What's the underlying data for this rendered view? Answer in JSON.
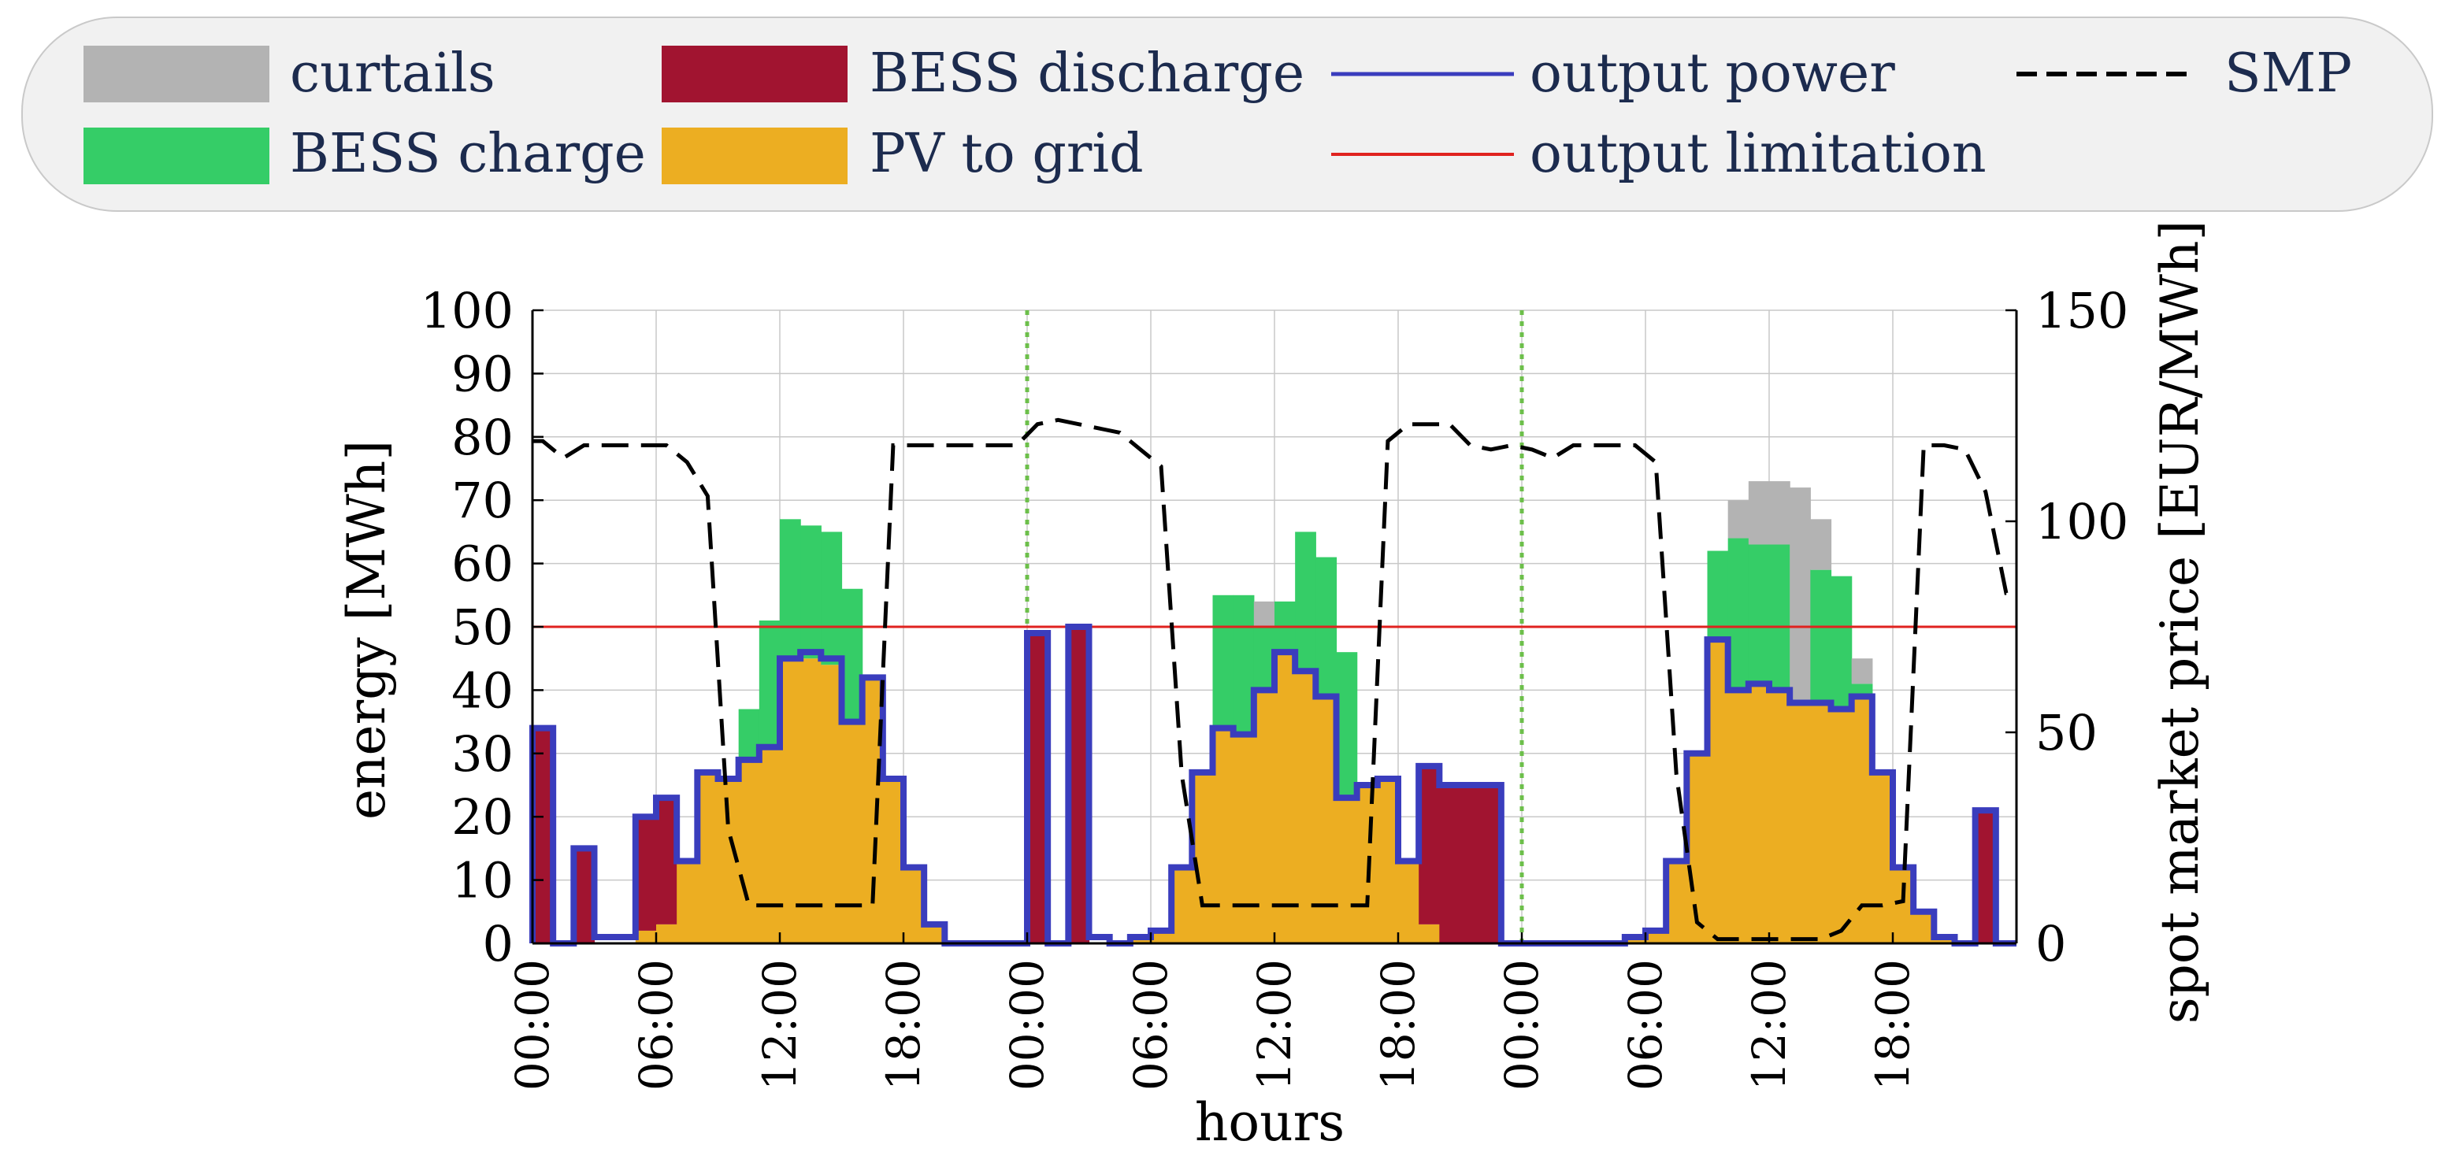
{
  "chart_data": {
    "type": "bar",
    "xlabel": "hours",
    "ylabel": "energy [MWh]",
    "y2label": "spot market price [EUR/MWh]",
    "ylim": [
      0,
      100
    ],
    "y2lim": [
      0,
      150
    ],
    "yticks": [
      0,
      10,
      20,
      30,
      40,
      50,
      60,
      70,
      80,
      90,
      100
    ],
    "y2ticks": [
      0,
      50,
      100,
      150
    ],
    "xticks": [
      {
        "h": 0,
        "label": "00:00"
      },
      {
        "h": 6,
        "label": "06:00"
      },
      {
        "h": 12,
        "label": "12:00"
      },
      {
        "h": 18,
        "label": "18:00"
      },
      {
        "h": 24,
        "label": "00:00"
      },
      {
        "h": 30,
        "label": "06:00"
      },
      {
        "h": 36,
        "label": "12:00"
      },
      {
        "h": 42,
        "label": "18:00"
      },
      {
        "h": 48,
        "label": "00:00"
      },
      {
        "h": 54,
        "label": "06:00"
      },
      {
        "h": 60,
        "label": "12:00"
      },
      {
        "h": 66,
        "label": "18:00"
      }
    ],
    "day_boundaries": [
      24,
      48
    ],
    "output_limitation": 50,
    "hours": 72,
    "series": [
      {
        "name": "PV to grid",
        "color": "#ecae22",
        "values": [
          0,
          0,
          0,
          0,
          0,
          2,
          3,
          13,
          27,
          26,
          29,
          31,
          45,
          45,
          44,
          35,
          42,
          26,
          12,
          3,
          0,
          0,
          0,
          0,
          0,
          0,
          0,
          0,
          0,
          1,
          2,
          12,
          27,
          34,
          33,
          40,
          46,
          43,
          39,
          23,
          25,
          26,
          13,
          3,
          0,
          0,
          0,
          0,
          0,
          0,
          0,
          0,
          0,
          1,
          2,
          13,
          30,
          48,
          40,
          41,
          40,
          38,
          38,
          37,
          39,
          27,
          12,
          5,
          1,
          0,
          0,
          0
        ]
      },
      {
        "name": "BESS charge",
        "color": "#35cd67",
        "values": [
          0,
          0,
          0,
          0,
          0,
          0,
          0,
          0,
          0,
          0,
          8,
          20,
          22,
          21,
          21,
          21,
          0,
          0,
          0,
          0,
          0,
          0,
          0,
          0,
          0,
          0,
          0,
          0,
          0,
          0,
          0,
          0,
          0,
          21,
          22,
          10,
          8,
          22,
          22,
          23,
          0,
          0,
          0,
          0,
          0,
          0,
          0,
          0,
          0,
          0,
          0,
          0,
          0,
          0,
          0,
          0,
          0,
          14,
          24,
          22,
          23,
          0,
          21,
          21,
          2,
          0,
          0,
          0,
          0,
          0,
          0,
          0
        ]
      },
      {
        "name": "curtails",
        "color": "#b3b3b3",
        "values": [
          0,
          0,
          0,
          0,
          0,
          0,
          0,
          0,
          0,
          0,
          0,
          0,
          0,
          0,
          0,
          0,
          0,
          0,
          0,
          0,
          0,
          0,
          0,
          0,
          0,
          0,
          0,
          0,
          0,
          0,
          0,
          0,
          0,
          0,
          0,
          4,
          0,
          0,
          0,
          0,
          0,
          0,
          0,
          0,
          0,
          0,
          0,
          0,
          0,
          0,
          0,
          0,
          0,
          0,
          0,
          0,
          0,
          0,
          6,
          10,
          10,
          34,
          8,
          0,
          4,
          0,
          0,
          0,
          0,
          0,
          0,
          0
        ]
      },
      {
        "name": "BESS discharge",
        "color": "#a11430",
        "values": [
          34,
          0,
          15,
          0,
          0,
          18,
          20,
          0,
          0,
          0,
          0,
          0,
          0,
          0,
          0,
          0,
          0,
          0,
          0,
          0,
          0,
          0,
          0,
          0,
          49,
          0,
          50,
          0,
          0,
          0,
          0,
          0,
          0,
          0,
          0,
          0,
          0,
          0,
          0,
          0,
          0,
          0,
          0,
          25,
          25,
          25,
          25,
          0,
          0,
          0,
          0,
          0,
          0,
          0,
          0,
          0,
          0,
          0,
          0,
          0,
          0,
          0,
          0,
          0,
          0,
          0,
          0,
          0,
          0,
          0,
          21,
          0
        ]
      },
      {
        "name": "output power",
        "color": "#3a3dbd",
        "values": [
          34,
          0,
          15,
          1,
          1,
          20,
          23,
          13,
          27,
          26,
          29,
          31,
          45,
          46,
          45,
          35,
          42,
          26,
          12,
          3,
          0,
          0,
          0,
          0,
          49,
          0,
          50,
          1,
          0,
          1,
          2,
          12,
          27,
          34,
          33,
          40,
          46,
          43,
          39,
          23,
          25,
          26,
          13,
          28,
          25,
          25,
          25,
          0,
          0,
          0,
          0,
          0,
          0,
          1,
          2,
          13,
          30,
          48,
          40,
          41,
          40,
          38,
          38,
          37,
          39,
          27,
          12,
          5,
          1,
          0,
          21,
          0
        ]
      },
      {
        "name": "SMP",
        "color": "#000000",
        "axis": "right",
        "values": [
          119,
          115,
          118,
          118,
          118,
          118,
          118,
          114,
          106,
          27,
          9,
          9,
          9,
          9,
          9,
          9,
          9,
          118,
          118,
          118,
          118,
          118,
          118,
          118,
          123,
          124,
          123,
          122,
          121,
          117,
          113,
          40,
          9,
          9,
          9,
          9,
          9,
          9,
          9,
          9,
          9,
          119,
          123,
          123,
          123,
          118,
          117,
          118,
          117,
          115,
          118,
          118,
          118,
          118,
          114,
          40,
          5,
          1,
          1,
          1,
          1,
          1,
          1,
          3,
          9,
          9,
          10,
          118,
          118,
          117,
          107,
          83
        ]
      }
    ]
  },
  "legend": {
    "curtails": "curtails",
    "bess_charge": "BESS charge",
    "bess_discharge": "BESS discharge",
    "pv_to_grid": "PV to grid",
    "output_power": "output power",
    "output_limitation": "output limitation",
    "smp": "SMP",
    "colors": {
      "curtails": "#b3b3b3",
      "bess_charge": "#35cd67",
      "bess_discharge": "#a11430",
      "pv_to_grid": "#ecae22",
      "output_power": "#3a3dbd",
      "output_limitation": "#e0221f",
      "smp": "#000000",
      "text": "#1c2b4e",
      "day_boundary": "#6cbf4a"
    }
  }
}
